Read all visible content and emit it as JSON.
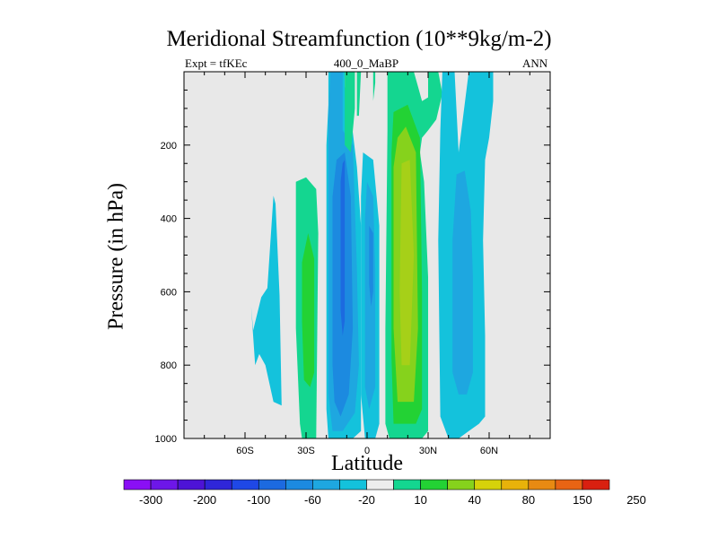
{
  "chart_data": {
    "type": "heatmap",
    "title": "Meridional Streamfunction (10**9kg/m-2)",
    "subtitle_left": "Expt = tfKEc",
    "subtitle_center": "400_0_MaBP",
    "subtitle_right": "ANN",
    "xlabel": "Latitude",
    "ylabel": "Pressure (in hPa)",
    "xlim": [
      -90,
      90
    ],
    "ylim": [
      1000,
      0
    ],
    "x_ticks": [
      {
        "value": -60,
        "label": "60S"
      },
      {
        "value": -30,
        "label": "30S"
      },
      {
        "value": 0,
        "label": "0"
      },
      {
        "value": 30,
        "label": "30N"
      },
      {
        "value": 60,
        "label": "60N"
      }
    ],
    "y_ticks": [
      {
        "value": 200,
        "label": "200"
      },
      {
        "value": 400,
        "label": "400"
      },
      {
        "value": 600,
        "label": "600"
      },
      {
        "value": 800,
        "label": "800"
      },
      {
        "value": 1000,
        "label": "1000"
      }
    ],
    "missing_color": "#e8e8e8",
    "colorbar": {
      "colors": [
        "#8a0ff5",
        "#6d17e8",
        "#4d13d6",
        "#2f26d9",
        "#1f48e6",
        "#1c6ae0",
        "#1c8ae0",
        "#1ea7e0",
        "#14c2dc",
        "#ededed",
        "#14d690",
        "#23d234",
        "#86d21c",
        "#d6d20a",
        "#e8b20a",
        "#e88a12",
        "#e86414",
        "#d92010"
      ],
      "labels": [
        {
          "after": 1,
          "text": "-300"
        },
        {
          "after": 3,
          "text": "-200"
        },
        {
          "after": 5,
          "text": "-100"
        },
        {
          "after": 7,
          "text": "-60"
        },
        {
          "after": 9,
          "text": "-20"
        },
        {
          "after": 11,
          "text": "10"
        },
        {
          "after": 13,
          "text": "40"
        },
        {
          "after": 15,
          "text": "80"
        },
        {
          "after": 17,
          "text": "150"
        },
        {
          "after": 19,
          "text": "250"
        }
      ]
    },
    "contour_regions": [
      {
        "level": "-20",
        "color": "#14c2dc",
        "points": [
          [
            -52,
            615
          ],
          [
            -49,
            590
          ],
          [
            -46,
            338
          ],
          [
            -45,
            360
          ],
          [
            -43,
            610
          ],
          [
            -42,
            910
          ],
          [
            -46,
            900
          ],
          [
            -50,
            800
          ],
          [
            -53,
            770
          ],
          [
            -55,
            800
          ],
          [
            -57,
            640
          ],
          [
            -56,
            705
          ]
        ]
      },
      {
        "level": "10",
        "color": "#14d690",
        "points": [
          [
            -30,
            288
          ],
          [
            -25,
            320
          ],
          [
            -24,
            440
          ],
          [
            -25,
            1000
          ],
          [
            -32,
            1000
          ],
          [
            -33,
            960
          ],
          [
            -35,
            700
          ],
          [
            -35,
            300
          ]
        ]
      },
      {
        "level": "40",
        "color": "#23d234",
        "points": [
          [
            -29,
            440
          ],
          [
            -26,
            510
          ],
          [
            -26,
            820
          ],
          [
            -28,
            860
          ],
          [
            -31,
            840
          ],
          [
            -32,
            680
          ],
          [
            -32,
            520
          ]
        ]
      },
      {
        "level": "-20",
        "color": "#14c2dc",
        "points": [
          [
            -19,
            0
          ],
          [
            -11,
            0
          ],
          [
            -11,
            40
          ],
          [
            -8,
            120
          ],
          [
            -5,
            260
          ],
          [
            -3,
            420
          ],
          [
            -3,
            980
          ],
          [
            -7,
            1000
          ],
          [
            -19,
            1000
          ],
          [
            -20,
            920
          ],
          [
            -20,
            200
          ],
          [
            -19,
            90
          ]
        ]
      },
      {
        "level": "-60",
        "color": "#1ea7e0",
        "points": [
          [
            -18,
            0
          ],
          [
            -12,
            0
          ],
          [
            -12,
            160
          ],
          [
            -7,
            200
          ],
          [
            -5,
            540
          ],
          [
            -4,
            800
          ],
          [
            -6,
            930
          ],
          [
            -12,
            980
          ],
          [
            -17,
            980
          ],
          [
            -19,
            880
          ],
          [
            -19,
            120
          ]
        ]
      },
      {
        "level": "-100",
        "color": "#1c8ae0",
        "points": [
          [
            -15,
            240
          ],
          [
            -11,
            220
          ],
          [
            -8,
            340
          ],
          [
            -7,
            700
          ],
          [
            -9,
            880
          ],
          [
            -13,
            940
          ],
          [
            -16,
            900
          ],
          [
            -17,
            800
          ],
          [
            -17,
            340
          ]
        ]
      },
      {
        "level": "-100",
        "color": "#1c6ae0",
        "points": [
          [
            -12,
            250
          ],
          [
            -11,
            240
          ],
          [
            -11,
            680
          ],
          [
            -12,
            720
          ],
          [
            -13,
            650
          ],
          [
            -13,
            300
          ]
        ]
      },
      {
        "level": "10",
        "color": "#14d690",
        "points": [
          [
            -11,
            0
          ],
          [
            -6,
            0
          ],
          [
            -6,
            100
          ],
          [
            -8,
            220
          ],
          [
            -11,
            200
          ]
        ]
      },
      {
        "level": "-20",
        "color": "#14c2dc",
        "points": [
          [
            -2,
            220
          ],
          [
            3,
            240
          ],
          [
            6,
            420
          ],
          [
            6,
            960
          ],
          [
            4,
            1000
          ],
          [
            -1,
            1000
          ],
          [
            -3,
            880
          ],
          [
            -3,
            340
          ]
        ]
      },
      {
        "level": "-60",
        "color": "#1ea7e0",
        "points": [
          [
            0,
            300
          ],
          [
            3,
            340
          ],
          [
            4,
            540
          ],
          [
            4,
            860
          ],
          [
            1,
            920
          ],
          [
            -1,
            860
          ],
          [
            -1,
            400
          ]
        ]
      },
      {
        "level": "-100",
        "color": "#1c8ae0",
        "points": [
          [
            1,
            420
          ],
          [
            3,
            440
          ],
          [
            3,
            600
          ],
          [
            2,
            640
          ],
          [
            1,
            580
          ]
        ]
      },
      {
        "level": "10",
        "color": "#14d690",
        "points": [
          [
            -5,
            0
          ],
          [
            -3,
            0
          ],
          [
            -4,
            120
          ],
          [
            -5,
            120
          ]
        ]
      },
      {
        "level": "10",
        "color": "#14d690",
        "points": [
          [
            3,
            0
          ],
          [
            4,
            0
          ],
          [
            4,
            30
          ],
          [
            3,
            80
          ]
        ]
      },
      {
        "level": "10",
        "color": "#14d690",
        "points": [
          [
            10,
            0
          ],
          [
            23,
            0
          ],
          [
            25,
            40
          ],
          [
            27,
            80
          ],
          [
            30,
            70
          ],
          [
            30,
            0
          ],
          [
            35,
            0
          ],
          [
            37,
            60
          ],
          [
            34,
            130
          ],
          [
            30,
            160
          ],
          [
            27,
            180
          ],
          [
            26,
            220
          ],
          [
            28,
            300
          ],
          [
            30,
            560
          ],
          [
            30,
            980
          ],
          [
            27,
            1000
          ],
          [
            11,
            1000
          ],
          [
            9,
            960
          ],
          [
            9,
            700
          ],
          [
            10,
            160
          ]
        ]
      },
      {
        "level": "40",
        "color": "#23d234",
        "points": [
          [
            13,
            110
          ],
          [
            20,
            90
          ],
          [
            26,
            180
          ],
          [
            27,
            600
          ],
          [
            27,
            920
          ],
          [
            24,
            960
          ],
          [
            13,
            960
          ],
          [
            12,
            780
          ],
          [
            12,
            220
          ]
        ]
      },
      {
        "level": "80",
        "color": "#86d21c",
        "points": [
          [
            15,
            180
          ],
          [
            19,
            150
          ],
          [
            24,
            220
          ],
          [
            25,
            700
          ],
          [
            23,
            900
          ],
          [
            15,
            900
          ],
          [
            13,
            700
          ],
          [
            13,
            260
          ]
        ]
      },
      {
        "level": "80",
        "color": "#a6d018",
        "points": [
          [
            17,
            250
          ],
          [
            21,
            240
          ],
          [
            23,
            500
          ],
          [
            21,
            800
          ],
          [
            17,
            800
          ],
          [
            16,
            600
          ]
        ]
      },
      {
        "level": "-20",
        "color": "#14c2dc",
        "points": [
          [
            37,
            0
          ],
          [
            43,
            0
          ],
          [
            45,
            220
          ],
          [
            50,
            0
          ],
          [
            62,
            0
          ],
          [
            62,
            80
          ],
          [
            60,
            180
          ],
          [
            58,
            240
          ],
          [
            57,
            460
          ],
          [
            58,
            720
          ],
          [
            58,
            940
          ],
          [
            55,
            960
          ],
          [
            50,
            980
          ],
          [
            45,
            1000
          ],
          [
            40,
            1000
          ],
          [
            36,
            940
          ],
          [
            35,
            460
          ],
          [
            36,
            160
          ]
        ]
      },
      {
        "level": "-60",
        "color": "#1ea7e0",
        "points": [
          [
            44,
            280
          ],
          [
            48,
            270
          ],
          [
            51,
            380
          ],
          [
            52,
            560
          ],
          [
            52,
            820
          ],
          [
            49,
            880
          ],
          [
            45,
            880
          ],
          [
            42,
            820
          ],
          [
            42,
            460
          ]
        ]
      }
    ]
  }
}
